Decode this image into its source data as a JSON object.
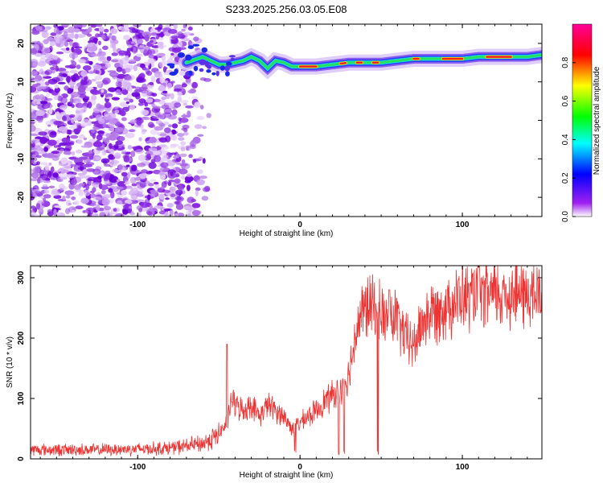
{
  "title": "S233.2025.256.03.05.E08",
  "chart_data": [
    {
      "type": "heatmap",
      "name": "spectrogram",
      "xlabel": "Height of straight line (km)",
      "ylabel": "Frequency (Hz)",
      "xlim": [
        -166,
        149
      ],
      "ylim": [
        -25,
        25
      ],
      "xticks": [
        -100,
        0,
        100
      ],
      "yticks": [
        20,
        10,
        0,
        -10,
        -20
      ],
      "colorbar": {
        "label": "Normalized spectral amplitude",
        "range": [
          0,
          1
        ],
        "ticks": [
          0.0,
          0.2,
          0.4,
          0.6,
          0.8
        ],
        "colors": [
          "#ffffff",
          "#a020f0",
          "#0000ff",
          "#00ffff",
          "#00ff00",
          "#ffff00",
          "#ff0000",
          "#ff00aa"
        ]
      },
      "ridge": {
        "x": [
          -70,
          -60,
          -55,
          -50,
          -45,
          -40,
          -35,
          -30,
          -25,
          -20,
          -15,
          -10,
          -5,
          0,
          10,
          20,
          30,
          40,
          50,
          60,
          70,
          80,
          90,
          100,
          110,
          120,
          130,
          140,
          149
        ],
        "y": [
          15,
          16.5,
          15.5,
          14.5,
          14.5,
          15,
          15.5,
          16.5,
          15.5,
          13.5,
          15.5,
          15,
          14,
          14,
          14,
          14.5,
          15,
          15,
          15,
          15.5,
          16,
          16,
          16,
          16,
          16.5,
          16.5,
          16.5,
          16.5,
          17
        ]
      }
    },
    {
      "type": "line",
      "name": "snr",
      "xlabel": "Height of straight line (km)",
      "ylabel": "SNR (10 * v/v)",
      "xlim": [
        -166,
        149
      ],
      "ylim": [
        0,
        320
      ],
      "xticks": [
        -100,
        0,
        100
      ],
      "yticks": [
        0,
        100,
        200,
        300
      ],
      "color": "#ee3333",
      "baseline": {
        "x": [
          -166,
          -120,
          -80,
          -60,
          -50,
          -45,
          -42,
          -40,
          -35,
          -30,
          -25,
          -20,
          -15,
          -10,
          -5,
          0,
          5,
          10,
          15,
          20,
          25,
          30,
          32,
          35,
          40,
          45,
          50,
          55,
          58,
          60,
          65,
          70,
          75,
          80,
          90,
          100,
          110,
          120,
          130,
          140,
          149
        ],
        "y": [
          15,
          15,
          18,
          25,
          40,
          60,
          100,
          90,
          80,
          90,
          70,
          90,
          80,
          70,
          50,
          60,
          70,
          80,
          95,
          105,
          115,
          140,
          170,
          220,
          250,
          250,
          240,
          230,
          235,
          230,
          200,
          185,
          225,
          240,
          255,
          265,
          270,
          270,
          275,
          270,
          270
        ]
      },
      "spikes": [
        {
          "x": -45,
          "y": 190
        },
        {
          "x": 110,
          "y": 318
        },
        {
          "x": 55,
          "y": 280
        }
      ],
      "dips": [
        {
          "x": -3,
          "y": 10
        },
        {
          "x": 24,
          "y": 5
        },
        {
          "x": 27,
          "y": 5
        },
        {
          "x": 48,
          "y": 5
        },
        {
          "x": 53,
          "y": 5
        }
      ]
    }
  ]
}
